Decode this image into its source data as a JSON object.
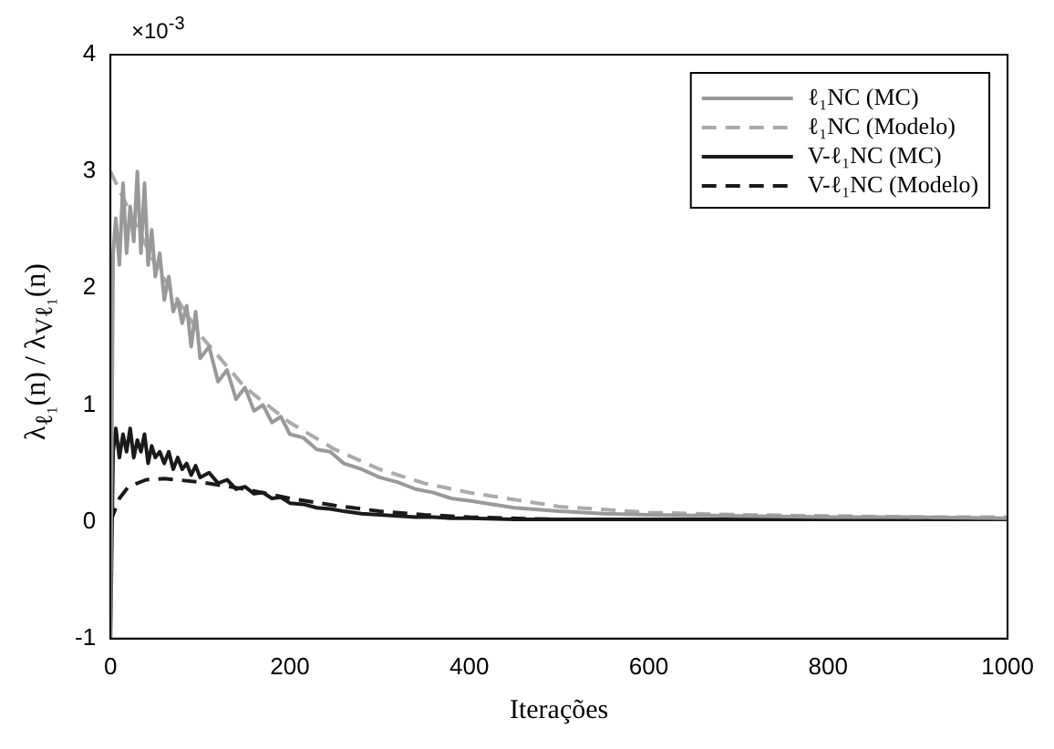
{
  "chart_data": {
    "type": "line",
    "xlabel": "Iterações",
    "ylabel": "λ$_{ℓ₁}$(n) / λ$_{Vℓ₁}$(n)",
    "annotations": [
      "×10$^{-3}$"
    ],
    "xlim": [
      0,
      1000
    ],
    "xticks": [
      0,
      200,
      400,
      600,
      800,
      1000
    ],
    "ylim": [
      -1,
      4
    ],
    "yticks": [
      -1,
      0,
      1,
      2,
      3,
      4
    ],
    "grid": false,
    "legend": "top right",
    "marker": "none",
    "series": [
      {
        "name": "ℓ₁NC (MC)",
        "color": "#999999",
        "line_style": "solid",
        "x": [
          0,
          3,
          6,
          10,
          14,
          18,
          22,
          26,
          30,
          34,
          38,
          42,
          46,
          50,
          55,
          60,
          65,
          70,
          75,
          80,
          85,
          90,
          95,
          100,
          110,
          120,
          130,
          140,
          150,
          160,
          170,
          180,
          190,
          200,
          215,
          230,
          245,
          260,
          280,
          300,
          320,
          340,
          360,
          380,
          400,
          450,
          500,
          550,
          600,
          700,
          800,
          900,
          1000
        ],
        "values": [
          -1,
          2.3,
          2.6,
          2.2,
          2.9,
          2.3,
          2.7,
          2.4,
          3.0,
          2.3,
          2.9,
          2.2,
          2.5,
          2.1,
          2.3,
          1.9,
          2.1,
          1.8,
          1.9,
          1.7,
          1.85,
          1.5,
          1.8,
          1.4,
          1.5,
          1.2,
          1.3,
          1.05,
          1.15,
          0.95,
          1.0,
          0.85,
          0.9,
          0.75,
          0.72,
          0.62,
          0.6,
          0.5,
          0.45,
          0.38,
          0.34,
          0.28,
          0.25,
          0.2,
          0.18,
          0.12,
          0.09,
          0.07,
          0.06,
          0.05,
          0.04,
          0.04,
          0.03
        ]
      },
      {
        "name": "ℓ₁NC (Modelo)",
        "color": "#aaaaaa",
        "line_style": "dashed",
        "x": [
          0,
          25,
          50,
          100,
          150,
          200,
          250,
          300,
          350,
          400,
          500,
          600,
          700,
          800,
          900,
          1000
        ],
        "values": [
          3.0,
          2.6,
          2.2,
          1.6,
          1.15,
          0.85,
          0.62,
          0.45,
          0.33,
          0.25,
          0.13,
          0.08,
          0.06,
          0.05,
          0.04,
          0.04
        ]
      },
      {
        "name": "V-ℓ₁NC (MC)",
        "color": "#1a1a1a",
        "line_style": "solid",
        "x": [
          0,
          3,
          6,
          10,
          14,
          18,
          22,
          26,
          30,
          34,
          38,
          42,
          46,
          50,
          55,
          60,
          65,
          70,
          75,
          80,
          85,
          90,
          95,
          100,
          110,
          120,
          130,
          140,
          150,
          160,
          170,
          180,
          190,
          200,
          215,
          230,
          245,
          260,
          280,
          300,
          320,
          340,
          360,
          380,
          400,
          450,
          500,
          550,
          600,
          700,
          800,
          900,
          1000
        ],
        "values": [
          -1,
          0.6,
          0.8,
          0.55,
          0.75,
          0.6,
          0.8,
          0.55,
          0.7,
          0.6,
          0.75,
          0.5,
          0.65,
          0.55,
          0.6,
          0.5,
          0.6,
          0.45,
          0.55,
          0.45,
          0.5,
          0.4,
          0.48,
          0.38,
          0.42,
          0.33,
          0.36,
          0.28,
          0.3,
          0.24,
          0.25,
          0.2,
          0.21,
          0.16,
          0.15,
          0.12,
          0.11,
          0.09,
          0.07,
          0.06,
          0.05,
          0.04,
          0.04,
          0.03,
          0.03,
          0.02,
          0.02,
          0.02,
          0.02,
          0.02,
          0.02,
          0.02,
          0.02
        ]
      },
      {
        "name": "V-ℓ₁NC (Modelo)",
        "color": "#1a1a1a",
        "line_style": "dashed",
        "x": [
          0,
          10,
          20,
          40,
          60,
          100,
          150,
          200,
          250,
          300,
          350,
          400,
          500,
          600,
          800,
          1000
        ],
        "values": [
          0,
          0.2,
          0.3,
          0.36,
          0.37,
          0.34,
          0.28,
          0.2,
          0.14,
          0.09,
          0.06,
          0.04,
          0.02,
          0.02,
          0.02,
          0.02
        ]
      }
    ]
  }
}
